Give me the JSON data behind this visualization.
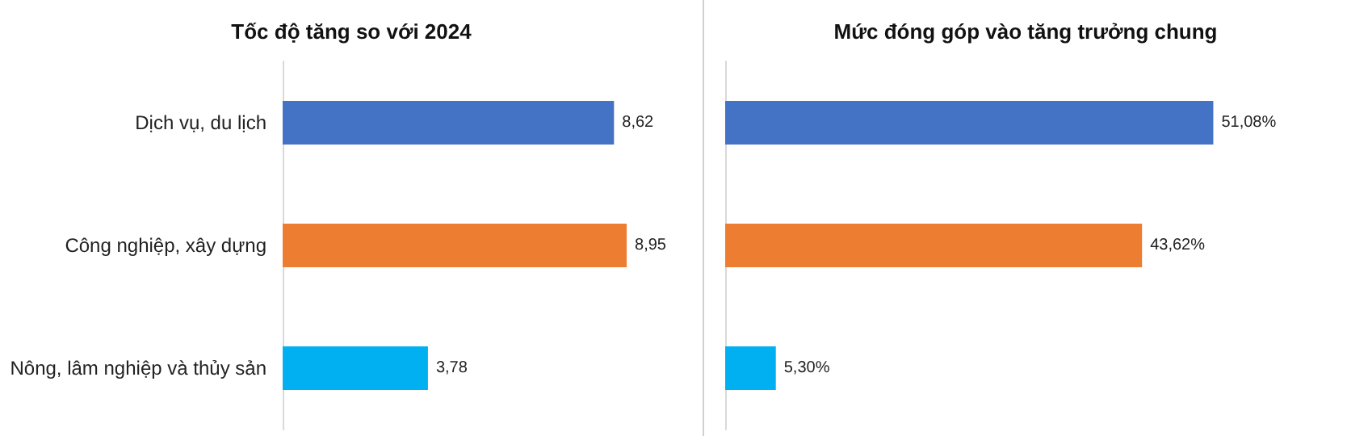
{
  "chart_data": [
    {
      "type": "bar",
      "orientation": "horizontal",
      "title": "Tốc độ tăng so với 2024",
      "categories": [
        "Dịch vụ, du lịch",
        "Công nghiệp, xây dựng",
        "Nông, lâm nghiệp và thủy sản"
      ],
      "values": [
        8.62,
        8.95,
        3.78
      ],
      "colors": [
        "#4472c4",
        "#ed7d31",
        "#00b0f0"
      ],
      "value_labels": [
        "8,62",
        "8,95",
        "3,78"
      ],
      "tick_labels": "y"
    },
    {
      "type": "bar",
      "orientation": "horizontal",
      "title": "Mức đóng góp vào tăng trưởng chung",
      "categories": [
        null,
        null,
        null
      ],
      "values": [
        51.08,
        43.62,
        5.3
      ],
      "colors": [
        "#4472c4",
        "#ed7d31",
        "#00b0f0"
      ],
      "value_labels": [
        "51,08%",
        "43,62%",
        "5,30%"
      ],
      "tick_labels": false
    }
  ]
}
